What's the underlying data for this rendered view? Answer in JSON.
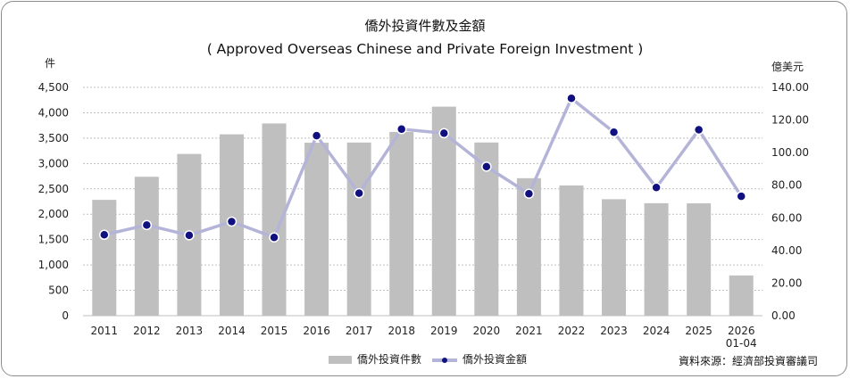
{
  "chart_data": {
    "type": "bar+line",
    "title": "僑外投資件數及金額",
    "subtitle": "( Approved Overseas Chinese and Private Foreign Investment )",
    "y_left_unit": "件",
    "y_right_unit": "億美元",
    "categories": [
      "2011",
      "2012",
      "2013",
      "2014",
      "2015",
      "2016",
      "2017",
      "2018",
      "2019",
      "2020",
      "2021",
      "2022",
      "2023",
      "2024",
      "2025",
      "2026\n01-04"
    ],
    "y_left_ticks": [
      "0",
      "500",
      "1,000",
      "1,500",
      "2,000",
      "2,500",
      "3,000",
      "3,500",
      "4,000",
      "4,500"
    ],
    "y_right_ticks": [
      "0.00",
      "20.00",
      "40.00",
      "60.00",
      "80.00",
      "100.00",
      "120.00",
      "140.00"
    ],
    "ylim_left": [
      0,
      4500
    ],
    "ylim_right": [
      0,
      140
    ],
    "grid": true,
    "legend_position": "bottom",
    "series": [
      {
        "name": "僑外投資件數",
        "type": "bar",
        "axis": "left",
        "color": "#bfbfbf",
        "values": [
          2283,
          2738,
          3188,
          3575,
          3789,
          3409,
          3413,
          3623,
          4120,
          3414,
          2710,
          2567,
          2296,
          2217,
          2214,
          793
        ]
      },
      {
        "name": "僑外投資金額",
        "type": "line",
        "axis": "right",
        "line_color": "#b4b4d8",
        "marker_color": "#101080",
        "values": [
          49.6,
          55.6,
          49.3,
          57.7,
          48.0,
          110.4,
          75.1,
          114.4,
          111.9,
          91.4,
          74.8,
          133.3,
          112.5,
          78.6,
          114.0,
          73.2
        ]
      }
    ]
  },
  "source": "資料來源：經濟部投資審議司"
}
